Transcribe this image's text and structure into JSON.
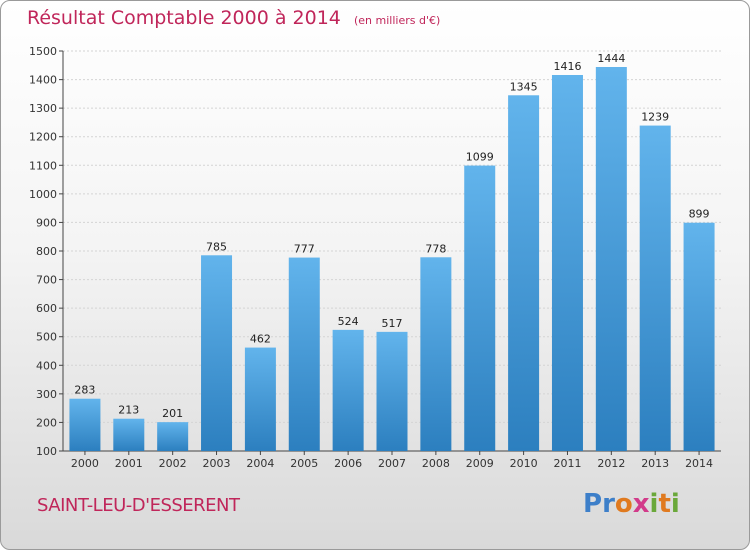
{
  "header": {
    "title": "Résultat Comptable 2000 à 2014",
    "unit": "(en milliers d'€)"
  },
  "footer": {
    "commune": "SAINT-LEU-D'ESSERENT",
    "logo": "Proxiti"
  },
  "colors": {
    "title": "#c0265a",
    "bar_light": "#62b4ec",
    "bar_dark": "#2c7fbf",
    "grid": "#d4d4d4"
  },
  "chart_data": {
    "type": "bar",
    "title": "Résultat Comptable 2000 à 2014",
    "subtitle": "(en milliers d'€)",
    "categories": [
      "2000",
      "2001",
      "2002",
      "2003",
      "2004",
      "2005",
      "2006",
      "2007",
      "2008",
      "2009",
      "2010",
      "2011",
      "2012",
      "2013",
      "2014"
    ],
    "values": [
      283,
      213,
      201,
      785,
      462,
      777,
      524,
      517,
      778,
      1099,
      1345,
      1416,
      1444,
      1239,
      899
    ],
    "ylim": [
      100,
      1500
    ],
    "yticks": [
      100,
      200,
      300,
      400,
      500,
      600,
      700,
      800,
      900,
      1000,
      1100,
      1200,
      1300,
      1400,
      1500
    ],
    "grid": true,
    "xlabel": "",
    "ylabel": ""
  }
}
